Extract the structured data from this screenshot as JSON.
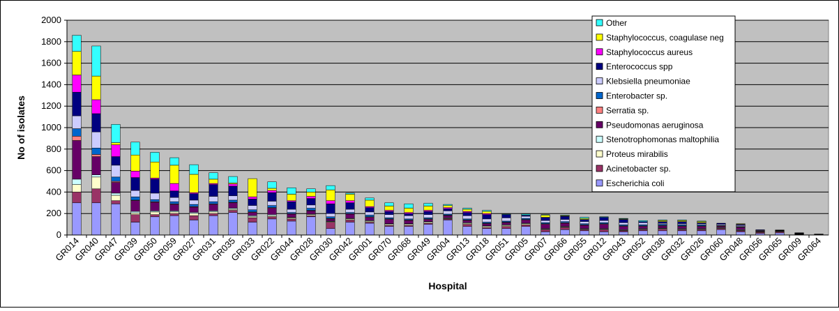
{
  "chart_data": {
    "type": "bar",
    "stacked": true,
    "xlabel": "Hospital",
    "ylabel": "No of isolates",
    "ylim": [
      0,
      2000
    ],
    "yticks": [
      0,
      200,
      400,
      600,
      800,
      1000,
      1200,
      1400,
      1600,
      1800,
      2000
    ],
    "grid": true,
    "plot_background": "#c0c0c0",
    "legend_position": "top-right",
    "categories": [
      "GR014",
      "GR040",
      "GR047",
      "GR039",
      "GR050",
      "GR059",
      "GR027",
      "GR031",
      "GR035",
      "GR033",
      "GR022",
      "GR044",
      "GR028",
      "GR030",
      "GR042",
      "GR001",
      "GR070",
      "GR068",
      "GR049",
      "GR004",
      "GR013",
      "GR018",
      "GR051",
      "GR005",
      "GR007",
      "GR066",
      "GR055",
      "GR012",
      "GR043",
      "GR052",
      "GR038",
      "GR032",
      "GR026",
      "GR060",
      "GR048",
      "GR056",
      "GR065",
      "GR009",
      "GR064"
    ],
    "series": [
      {
        "name": "Escherichia coli",
        "color": "#9999ff",
        "values": [
          300,
          300,
          290,
          120,
          170,
          180,
          140,
          180,
          210,
          120,
          150,
          130,
          170,
          60,
          120,
          110,
          80,
          80,
          100,
          140,
          80,
          60,
          60,
          80,
          30,
          50,
          40,
          30,
          30,
          40,
          40,
          40,
          40,
          50,
          30,
          15,
          20,
          5,
          3
        ]
      },
      {
        "name": "Acinetobacter sp.",
        "color": "#993366",
        "values": [
          100,
          130,
          30,
          70,
          20,
          20,
          40,
          20,
          20,
          40,
          20,
          20,
          10,
          60,
          20,
          10,
          10,
          10,
          10,
          10,
          20,
          10,
          20,
          15,
          20,
          20,
          10,
          20,
          10,
          10,
          15,
          10,
          10,
          10,
          10,
          10,
          10,
          3,
          1
        ]
      },
      {
        "name": "Proteus mirabilis",
        "color": "#ffffcc",
        "values": [
          70,
          110,
          50,
          15,
          25,
          15,
          20,
          15,
          10,
          10,
          10,
          10,
          10,
          5,
          10,
          10,
          10,
          10,
          10,
          5,
          10,
          10,
          10,
          10,
          5,
          5,
          5,
          5,
          5,
          5,
          5,
          5,
          5,
          5,
          5,
          5,
          5,
          2,
          1
        ]
      },
      {
        "name": "Stenotrophomonas maltophilia",
        "color": "#ccffff",
        "values": [
          50,
          20,
          20,
          15,
          10,
          10,
          10,
          10,
          10,
          10,
          10,
          5,
          5,
          5,
          5,
          5,
          5,
          5,
          5,
          5,
          5,
          5,
          5,
          5,
          5,
          5,
          5,
          5,
          5,
          5,
          5,
          5,
          5,
          5,
          5,
          2,
          2,
          1,
          0
        ]
      },
      {
        "name": "Pseudomonas aeruginosa",
        "color": "#660066",
        "values": [
          360,
          170,
          100,
          100,
          80,
          60,
          50,
          60,
          50,
          30,
          60,
          30,
          30,
          20,
          40,
          30,
          40,
          30,
          20,
          20,
          20,
          20,
          20,
          30,
          40,
          30,
          30,
          40,
          30,
          20,
          20,
          20,
          20,
          10,
          20,
          5,
          3,
          5,
          2
        ]
      },
      {
        "name": "Serratia sp.",
        "color": "#ff8080",
        "values": [
          40,
          20,
          10,
          5,
          5,
          5,
          5,
          5,
          5,
          5,
          5,
          5,
          5,
          5,
          5,
          5,
          5,
          5,
          5,
          5,
          5,
          5,
          5,
          5,
          5,
          5,
          5,
          5,
          5,
          5,
          5,
          5,
          5,
          5,
          5,
          0,
          0,
          0,
          0
        ]
      },
      {
        "name": "Enterobacter sp.",
        "color": "#0066cc",
        "values": [
          70,
          60,
          40,
          30,
          20,
          20,
          20,
          20,
          20,
          20,
          20,
          10,
          20,
          15,
          10,
          15,
          10,
          10,
          10,
          10,
          10,
          10,
          10,
          10,
          10,
          10,
          10,
          10,
          10,
          10,
          10,
          10,
          10,
          5,
          5,
          2,
          2,
          1,
          0
        ]
      },
      {
        "name": "Klebsiella pneumoniae",
        "color": "#ccccff",
        "values": [
          120,
          150,
          110,
          60,
          60,
          40,
          40,
          50,
          40,
          40,
          40,
          30,
          30,
          30,
          30,
          30,
          30,
          30,
          30,
          30,
          30,
          30,
          30,
          20,
          20,
          20,
          20,
          20,
          20,
          20,
          10,
          10,
          10,
          10,
          10,
          5,
          2,
          2,
          1
        ]
      },
      {
        "name": "Enterococcus spp",
        "color": "#000080",
        "values": [
          220,
          170,
          80,
          120,
          130,
          60,
          60,
          110,
          90,
          60,
          80,
          70,
          60,
          90,
          60,
          40,
          30,
          20,
          30,
          20,
          30,
          40,
          30,
          10,
          30,
          30,
          20,
          30,
          30,
          10,
          15,
          20,
          10,
          10,
          10,
          5,
          3,
          2,
          1
        ]
      },
      {
        "name": "Staphylococcus aureus",
        "color": "#ff00ff",
        "values": [
          160,
          130,
          110,
          60,
          10,
          70,
          10,
          10,
          20,
          20,
          20,
          10,
          20,
          30,
          20,
          10,
          10,
          10,
          10,
          10,
          10,
          10,
          0,
          0,
          0,
          0,
          0,
          0,
          0,
          0,
          0,
          0,
          0,
          0,
          0,
          0,
          0,
          0,
          0
        ]
      },
      {
        "name": "Staphylococcus, coagulase neg",
        "color": "#ffff00",
        "values": [
          220,
          220,
          20,
          150,
          150,
          170,
          170,
          40,
          10,
          170,
          20,
          60,
          40,
          100,
          60,
          60,
          40,
          40,
          40,
          20,
          20,
          20,
          0,
          0,
          20,
          5,
          10,
          0,
          5,
          0,
          10,
          10,
          10,
          0,
          5,
          0,
          0,
          0,
          0
        ]
      },
      {
        "name": "Other",
        "color": "#33ffff",
        "values": [
          150,
          280,
          170,
          120,
          90,
          70,
          90,
          60,
          60,
          0,
          60,
          60,
          30,
          40,
          10,
          20,
          30,
          40,
          25,
          10,
          10,
          10,
          5,
          10,
          5,
          5,
          10,
          5,
          5,
          10,
          5,
          5,
          5,
          0,
          0,
          0,
          0,
          0,
          0
        ]
      }
    ]
  }
}
